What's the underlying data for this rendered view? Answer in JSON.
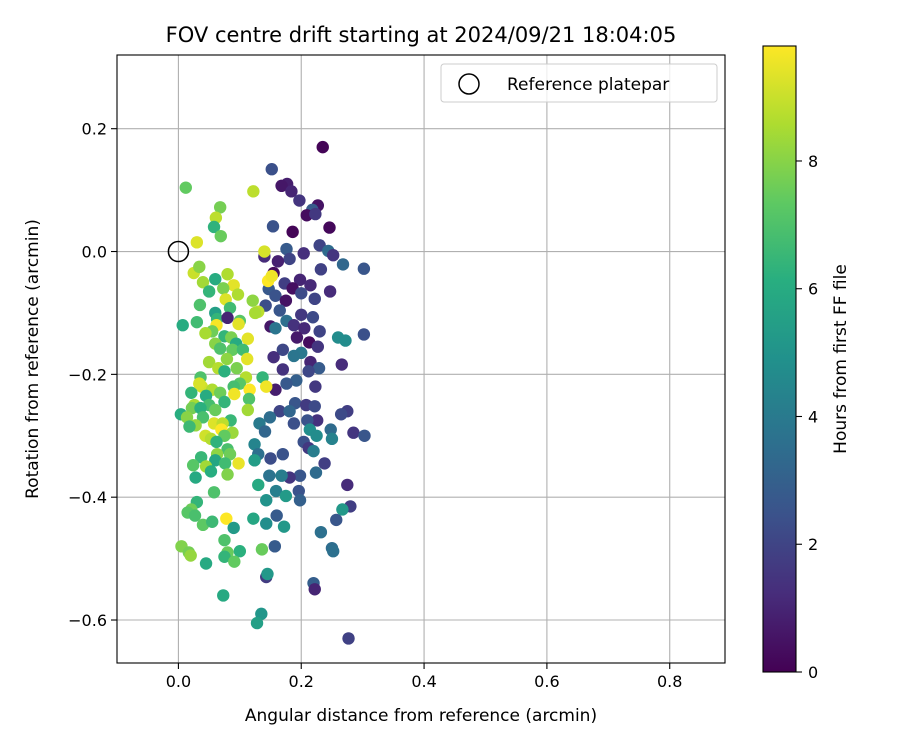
{
  "chart_data": {
    "type": "scatter",
    "title": "FOV centre drift starting at 2024/09/21 18:04:05",
    "xlabel": "Angular distance from reference (arcmin)",
    "ylabel": "Rotation from reference (arcmin)",
    "xlim": [
      -0.1,
      0.89
    ],
    "ylim": [
      -0.67,
      0.32
    ],
    "xticks": [
      0.0,
      0.2,
      0.4,
      0.6,
      0.8
    ],
    "xtick_labels": [
      "0.0",
      "0.2",
      "0.4",
      "0.6",
      "0.8"
    ],
    "yticks": [
      0.2,
      0.0,
      -0.2,
      -0.4,
      -0.6
    ],
    "ytick_labels": [
      "0.2",
      "0.0",
      "−0.2",
      "−0.4",
      "−0.6"
    ],
    "grid": true,
    "legend": {
      "position": "top-right",
      "entries": [
        {
          "label": "Reference platepar",
          "marker": "open-circle",
          "x": 0.0,
          "y": 0.0
        }
      ]
    },
    "colorbar": {
      "label": "Hours from first FF file",
      "range": [
        0,
        9.8
      ],
      "ticks": [
        0,
        2,
        4,
        6,
        8
      ],
      "tick_labels": [
        "0",
        "2",
        "4",
        "6",
        "8"
      ],
      "colormap": "viridis"
    },
    "points": [
      [
        0.235,
        0.17,
        0.1
      ],
      [
        0.152,
        0.134,
        2.4
      ],
      [
        0.177,
        0.11,
        0.8
      ],
      [
        0.168,
        0.107,
        0.6
      ],
      [
        0.184,
        0.098,
        1.0
      ],
      [
        0.197,
        0.083,
        1.5
      ],
      [
        0.227,
        0.075,
        0.5
      ],
      [
        0.218,
        0.068,
        2.8
      ],
      [
        0.209,
        0.059,
        0.3
      ],
      [
        0.223,
        0.061,
        1.6
      ],
      [
        0.154,
        0.041,
        2.5
      ],
      [
        0.246,
        0.039,
        0.2
      ],
      [
        0.186,
        0.032,
        0.1
      ],
      [
        0.23,
        0.01,
        2.0
      ],
      [
        0.244,
        0.001,
        3.4
      ],
      [
        0.176,
        0.004,
        2.8
      ],
      [
        0.204,
        -0.003,
        1.3
      ],
      [
        0.252,
        -0.006,
        1.5
      ],
      [
        0.14,
        -0.008,
        1.2
      ],
      [
        0.181,
        -0.012,
        2.0
      ],
      [
        0.162,
        -0.016,
        0.9
      ],
      [
        0.268,
        -0.021,
        3.3
      ],
      [
        0.232,
        -0.029,
        1.9
      ],
      [
        0.302,
        -0.028,
        2.6
      ],
      [
        0.155,
        -0.035,
        0.3
      ],
      [
        0.198,
        -0.046,
        1.0
      ],
      [
        0.173,
        -0.052,
        1.8
      ],
      [
        0.215,
        -0.055,
        1.1
      ],
      [
        0.147,
        -0.061,
        2.7
      ],
      [
        0.186,
        -0.06,
        0.4
      ],
      [
        0.2,
        -0.068,
        2.2
      ],
      [
        0.247,
        -0.065,
        1.2
      ],
      [
        0.158,
        -0.072,
        2.5
      ],
      [
        0.222,
        -0.077,
        2.0
      ],
      [
        0.175,
        -0.08,
        0.5
      ],
      [
        0.142,
        -0.088,
        2.3
      ],
      [
        0.165,
        -0.096,
        2.6
      ],
      [
        0.2,
        -0.103,
        1.6
      ],
      [
        0.219,
        -0.107,
        2.2
      ],
      [
        0.176,
        -0.113,
        3.6
      ],
      [
        0.15,
        -0.122,
        0.6
      ],
      [
        0.188,
        -0.12,
        1.4
      ],
      [
        0.205,
        -0.125,
        1.1
      ],
      [
        0.158,
        -0.125,
        3.8
      ],
      [
        0.23,
        -0.13,
        2.0
      ],
      [
        0.193,
        -0.14,
        0.7
      ],
      [
        0.26,
        -0.14,
        4.7
      ],
      [
        0.272,
        -0.145,
        4.7
      ],
      [
        0.302,
        -0.135,
        2.4
      ],
      [
        0.213,
        -0.148,
        0.3
      ],
      [
        0.227,
        -0.155,
        1.5
      ],
      [
        0.17,
        -0.16,
        2.1
      ],
      [
        0.2,
        -0.165,
        3.9
      ],
      [
        0.188,
        -0.17,
        3.8
      ],
      [
        0.155,
        -0.172,
        1.3
      ],
      [
        0.215,
        -0.18,
        1.0
      ],
      [
        0.266,
        -0.184,
        1.2
      ],
      [
        0.229,
        -0.19,
        2.8
      ],
      [
        0.17,
        -0.192,
        1.4
      ],
      [
        0.212,
        -0.195,
        2.1
      ],
      [
        0.192,
        -0.21,
        3.0
      ],
      [
        0.176,
        -0.215,
        2.7
      ],
      [
        0.223,
        -0.22,
        1.6
      ],
      [
        0.158,
        -0.225,
        0.8
      ],
      [
        0.19,
        -0.247,
        2.6
      ],
      [
        0.208,
        -0.25,
        1.7
      ],
      [
        0.222,
        -0.252,
        2.2
      ],
      [
        0.165,
        -0.26,
        2.0
      ],
      [
        0.275,
        -0.26,
        1.8
      ],
      [
        0.181,
        -0.26,
        3.2
      ],
      [
        0.265,
        -0.265,
        2.2
      ],
      [
        0.149,
        -0.27,
        3.5
      ],
      [
        0.226,
        -0.275,
        1.4
      ],
      [
        0.21,
        -0.275,
        2.5
      ],
      [
        0.214,
        -0.29,
        4.8
      ],
      [
        0.132,
        -0.28,
        4.0
      ],
      [
        0.188,
        -0.28,
        2.4
      ],
      [
        0.248,
        -0.29,
        3.4
      ],
      [
        0.141,
        -0.293,
        3.2
      ],
      [
        0.225,
        -0.3,
        4.7
      ],
      [
        0.285,
        -0.295,
        1.5
      ],
      [
        0.303,
        -0.3,
        2.6
      ],
      [
        0.25,
        -0.305,
        4.3
      ],
      [
        0.204,
        -0.31,
        2.4
      ],
      [
        0.124,
        -0.314,
        4.4
      ],
      [
        0.212,
        -0.32,
        1.6
      ],
      [
        0.22,
        -0.325,
        4.1
      ],
      [
        0.13,
        -0.33,
        3.6
      ],
      [
        0.17,
        -0.33,
        2.5
      ],
      [
        0.15,
        -0.337,
        2.3
      ],
      [
        0.124,
        -0.34,
        5.4
      ],
      [
        0.238,
        -0.345,
        1.8
      ],
      [
        0.224,
        -0.36,
        3.4
      ],
      [
        0.198,
        -0.365,
        2.6
      ],
      [
        0.181,
        -0.368,
        1.5
      ],
      [
        0.168,
        -0.365,
        4.1
      ],
      [
        0.148,
        -0.365,
        3.7
      ],
      [
        0.13,
        -0.38,
        5.9
      ],
      [
        0.275,
        -0.38,
        1.2
      ],
      [
        0.196,
        -0.39,
        2.5
      ],
      [
        0.159,
        -0.39,
        4.2
      ],
      [
        0.175,
        -0.398,
        5.3
      ],
      [
        0.143,
        -0.405,
        5.0
      ],
      [
        0.198,
        -0.405,
        3.0
      ],
      [
        0.28,
        -0.415,
        1.8
      ],
      [
        0.267,
        -0.42,
        5.2
      ],
      [
        0.16,
        -0.43,
        2.8
      ],
      [
        0.257,
        -0.437,
        2.6
      ],
      [
        0.143,
        -0.443,
        4.8
      ],
      [
        0.172,
        -0.448,
        5.2
      ],
      [
        0.122,
        -0.435,
        5.8
      ],
      [
        0.232,
        -0.457,
        3.6
      ],
      [
        0.157,
        -0.48,
        2.8
      ],
      [
        0.25,
        -0.483,
        3.5
      ],
      [
        0.252,
        -0.488,
        3.6
      ],
      [
        0.136,
        -0.485,
        7.5
      ],
      [
        0.143,
        -0.53,
        1.7
      ],
      [
        0.145,
        -0.525,
        5.2
      ],
      [
        0.22,
        -0.54,
        2.9
      ],
      [
        0.222,
        -0.55,
        1.0
      ],
      [
        0.135,
        -0.59,
        5.1
      ],
      [
        0.128,
        -0.605,
        5.5
      ],
      [
        0.277,
        -0.63,
        1.9
      ],
      [
        0.073,
        -0.56,
        5.9
      ],
      [
        0.012,
        0.104,
        7.4
      ],
      [
        0.068,
        0.072,
        7.7
      ],
      [
        0.122,
        0.098,
        8.8
      ],
      [
        0.061,
        0.055,
        8.8
      ],
      [
        0.058,
        0.04,
        6.3
      ],
      [
        0.069,
        0.025,
        7.5
      ],
      [
        0.03,
        0.015,
        9.3
      ],
      [
        0.14,
        0.0,
        9.2
      ],
      [
        0.146,
        -0.048,
        9.8
      ],
      [
        0.152,
        -0.04,
        9.6
      ],
      [
        0.025,
        -0.035,
        9.0
      ],
      [
        0.034,
        -0.025,
        8.0
      ],
      [
        0.04,
        -0.05,
        8.4
      ],
      [
        0.06,
        -0.045,
        6.0
      ],
      [
        0.08,
        -0.037,
        8.6
      ],
      [
        0.09,
        -0.055,
        9.4
      ],
      [
        0.073,
        -0.06,
        7.8
      ],
      [
        0.05,
        -0.065,
        6.4
      ],
      [
        0.097,
        -0.07,
        8.6
      ],
      [
        0.077,
        -0.078,
        9.3
      ],
      [
        0.035,
        -0.087,
        7.0
      ],
      [
        0.084,
        -0.092,
        6.7
      ],
      [
        0.06,
        -0.1,
        5.5
      ],
      [
        0.121,
        -0.08,
        8.1
      ],
      [
        0.13,
        -0.098,
        8.8
      ],
      [
        0.125,
        -0.1,
        8.5
      ],
      [
        0.063,
        -0.11,
        6.4
      ],
      [
        0.08,
        -0.108,
        1.0
      ],
      [
        0.1,
        -0.113,
        7.2
      ],
      [
        0.098,
        -0.118,
        9.4
      ],
      [
        0.03,
        -0.115,
        6.7
      ],
      [
        0.007,
        -0.12,
        6.0
      ],
      [
        0.062,
        -0.12,
        9.7
      ],
      [
        0.055,
        -0.13,
        7.6
      ],
      [
        0.044,
        -0.133,
        8.5
      ],
      [
        0.075,
        -0.138,
        6.4
      ],
      [
        0.086,
        -0.14,
        7.8
      ],
      [
        0.113,
        -0.142,
        9.4
      ],
      [
        0.06,
        -0.15,
        8.0
      ],
      [
        0.094,
        -0.15,
        6.0
      ],
      [
        0.068,
        -0.158,
        7.0
      ],
      [
        0.088,
        -0.16,
        7.4
      ],
      [
        0.105,
        -0.16,
        6.7
      ],
      [
        0.112,
        -0.175,
        9.4
      ],
      [
        0.079,
        -0.175,
        8.1
      ],
      [
        0.05,
        -0.18,
        8.4
      ],
      [
        0.065,
        -0.19,
        8.7
      ],
      [
        0.095,
        -0.19,
        7.8
      ],
      [
        0.075,
        -0.195,
        6.2
      ],
      [
        0.036,
        -0.205,
        7.0
      ],
      [
        0.11,
        -0.205,
        8.7
      ],
      [
        0.137,
        -0.205,
        6.4
      ],
      [
        0.1,
        -0.215,
        7.2
      ],
      [
        0.09,
        -0.22,
        6.8
      ],
      [
        0.038,
        -0.22,
        9.1
      ],
      [
        0.143,
        -0.22,
        9.6
      ],
      [
        0.116,
        -0.225,
        9.8
      ],
      [
        0.021,
        -0.23,
        6.4
      ],
      [
        0.034,
        -0.215,
        9.2
      ],
      [
        0.055,
        -0.225,
        8.6
      ],
      [
        0.068,
        -0.23,
        7.6
      ],
      [
        0.091,
        -0.232,
        9.6
      ],
      [
        0.115,
        -0.24,
        7.0
      ],
      [
        0.045,
        -0.235,
        6.0
      ],
      [
        0.075,
        -0.245,
        6.4
      ],
      [
        0.026,
        -0.25,
        8.5
      ],
      [
        0.05,
        -0.25,
        6.8
      ],
      [
        0.022,
        -0.255,
        7.7
      ],
      [
        0.036,
        -0.255,
        6.2
      ],
      [
        0.06,
        -0.258,
        7.5
      ],
      [
        0.113,
        -0.258,
        8.4
      ],
      [
        0.004,
        -0.265,
        6.1
      ],
      [
        0.014,
        -0.27,
        8.0
      ],
      [
        0.04,
        -0.27,
        6.9
      ],
      [
        0.085,
        -0.275,
        6.5
      ],
      [
        0.058,
        -0.28,
        9.3
      ],
      [
        0.072,
        -0.28,
        8.8
      ],
      [
        0.028,
        -0.283,
        8.2
      ],
      [
        0.018,
        -0.285,
        6.6
      ],
      [
        0.07,
        -0.29,
        9.8
      ],
      [
        0.088,
        -0.295,
        8.3
      ],
      [
        0.044,
        -0.3,
        9.1
      ],
      [
        0.053,
        -0.305,
        8.7
      ],
      [
        0.075,
        -0.3,
        7.4
      ],
      [
        0.062,
        -0.31,
        6.3
      ],
      [
        0.08,
        -0.322,
        6.9
      ],
      [
        0.063,
        -0.33,
        8.1
      ],
      [
        0.084,
        -0.33,
        7.6
      ],
      [
        0.037,
        -0.335,
        6.5
      ],
      [
        0.06,
        -0.34,
        5.8
      ],
      [
        0.024,
        -0.348,
        7.2
      ],
      [
        0.045,
        -0.35,
        8.4
      ],
      [
        0.076,
        -0.345,
        6.7
      ],
      [
        0.098,
        -0.345,
        9.5
      ],
      [
        0.053,
        -0.358,
        6.1
      ],
      [
        0.028,
        -0.368,
        5.9
      ],
      [
        0.08,
        -0.363,
        7.9
      ],
      [
        0.058,
        -0.392,
        7.0
      ],
      [
        0.03,
        -0.408,
        6.4
      ],
      [
        0.021,
        -0.42,
        7.6
      ],
      [
        0.015,
        -0.425,
        7.2
      ],
      [
        0.027,
        -0.43,
        6.9
      ],
      [
        0.078,
        -0.435,
        9.9
      ],
      [
        0.09,
        -0.45,
        5.3
      ],
      [
        0.04,
        -0.445,
        7.3
      ],
      [
        0.055,
        -0.44,
        6.6
      ],
      [
        0.075,
        -0.47,
        7.0
      ],
      [
        0.005,
        -0.48,
        7.9
      ],
      [
        0.017,
        -0.49,
        7.7
      ],
      [
        0.02,
        -0.495,
        8.2
      ],
      [
        0.08,
        -0.49,
        7.5
      ],
      [
        0.075,
        -0.497,
        6.4
      ],
      [
        0.1,
        -0.488,
        6.2
      ],
      [
        0.045,
        -0.508,
        5.9
      ],
      [
        0.091,
        -0.505,
        7.4
      ]
    ]
  }
}
